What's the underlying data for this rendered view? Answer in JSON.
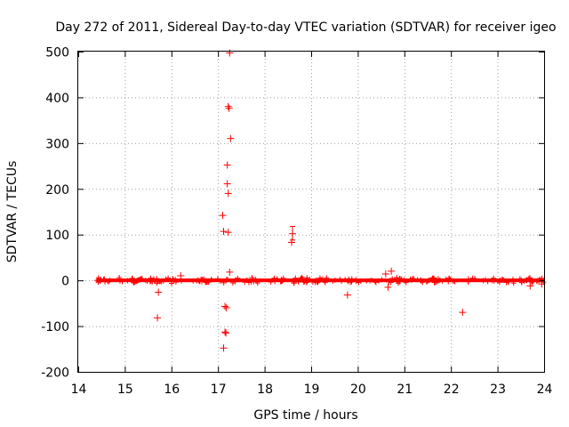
{
  "chart_data": {
    "type": "scatter",
    "title": "Day 272 of 2011, Sidereal Day-to-day VTEC variation (SDTVAR) for receiver igeo",
    "xlabel": "GPS time / hours",
    "ylabel": "SDTVAR / TECUs",
    "xlim": [
      14,
      24
    ],
    "ylim": [
      -200,
      500
    ],
    "xticks": [
      "14",
      "15",
      "16",
      "17",
      "18",
      "19",
      "20",
      "21",
      "22",
      "23",
      "24"
    ],
    "yticks": [
      "-200",
      "-100",
      "0",
      "100",
      "200",
      "300",
      "400",
      "500"
    ],
    "grid": true,
    "marker": "+",
    "color": "#ff0000",
    "baseline_band": {
      "x_start": 14.4,
      "x_end": 24.0,
      "y_center": 0,
      "half_width": 4
    },
    "series": [
      {
        "name": "SDTVAR",
        "outliers": [
          {
            "x": 17.25,
            "y": 497
          },
          {
            "x": 17.22,
            "y": 380
          },
          {
            "x": 17.24,
            "y": 376
          },
          {
            "x": 17.27,
            "y": 310
          },
          {
            "x": 17.2,
            "y": 252
          },
          {
            "x": 17.2,
            "y": 211
          },
          {
            "x": 17.22,
            "y": 190
          },
          {
            "x": 17.1,
            "y": 142
          },
          {
            "x": 17.12,
            "y": 107
          },
          {
            "x": 17.22,
            "y": 105
          },
          {
            "x": 17.25,
            "y": 18
          },
          {
            "x": 18.6,
            "y": 102
          },
          {
            "x": 18.58,
            "y": 83
          },
          {
            "x": 20.72,
            "y": 20
          },
          {
            "x": 20.6,
            "y": 14
          },
          {
            "x": 16.2,
            "y": 10
          },
          {
            "x": 15.72,
            "y": -26
          },
          {
            "x": 15.7,
            "y": -82
          },
          {
            "x": 17.15,
            "y": -57
          },
          {
            "x": 17.18,
            "y": -60
          },
          {
            "x": 17.15,
            "y": -113
          },
          {
            "x": 17.17,
            "y": -115
          },
          {
            "x": 17.12,
            "y": -148
          },
          {
            "x": 19.78,
            "y": -32
          },
          {
            "x": 20.65,
            "y": -15
          },
          {
            "x": 22.25,
            "y": -70
          },
          {
            "x": 23.7,
            "y": -12
          },
          {
            "x": 23.95,
            "y": -8
          }
        ],
        "error_bars": [
          {
            "x": 18.6,
            "y": 102,
            "low": 88,
            "high": 118
          }
        ]
      }
    ]
  }
}
